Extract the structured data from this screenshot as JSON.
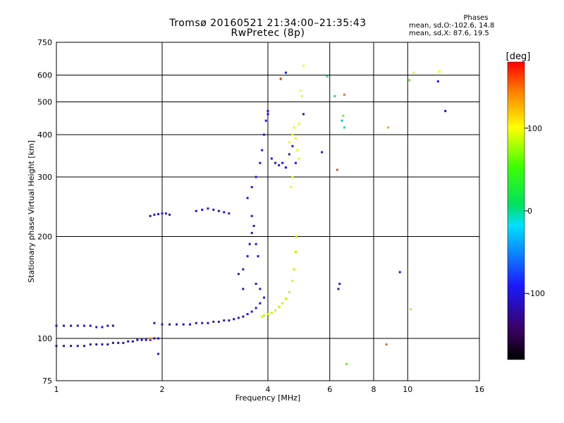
{
  "header": {
    "title_line1": "Tromsø 20160521 21:34:00–21:35:43",
    "title_line2": "RwPretec (8p)",
    "phases_title": "Phases",
    "phases_line1": "mean, sd,O:-102.6, 14.8",
    "phases_line2": "mean, sd,X:  87.6, 19.5"
  },
  "chart_data": {
    "type": "scatter",
    "xlabel": "Frequency [MHz]",
    "ylabel": "Stationary phase Virtual Height [km]",
    "x_scale": "log",
    "y_scale": "log",
    "xlim": [
      1,
      16
    ],
    "ylim": [
      75,
      750
    ],
    "x_ticks": [
      {
        "value": 1,
        "label": "1"
      },
      {
        "value": 2,
        "label": "2"
      },
      {
        "value": 4,
        "label": "4"
      },
      {
        "value": 6,
        "label": "6"
      },
      {
        "value": 8,
        "label": "8"
      },
      {
        "value": 10,
        "label": "10"
      },
      {
        "value": 16,
        "label": "16"
      }
    ],
    "y_ticks": [
      {
        "value": 75,
        "label": "75"
      },
      {
        "value": 100,
        "label": "100"
      },
      {
        "value": 200,
        "label": "200"
      },
      {
        "value": 300,
        "label": "300"
      },
      {
        "value": 400,
        "label": "400"
      },
      {
        "value": 500,
        "label": "500"
      },
      {
        "value": 600,
        "label": "600"
      },
      {
        "value": 750,
        "label": "750"
      }
    ],
    "grid": true,
    "colorbar": {
      "label": "[deg]",
      "range": [
        -180,
        180
      ],
      "ticks": [
        {
          "value": 100,
          "label": "100"
        },
        {
          "value": 0,
          "label": "0"
        },
        {
          "value": -100,
          "label": "-100"
        }
      ]
    },
    "traces": [
      {
        "name": "O lower trace",
        "phase": -105,
        "points": [
          [
            1.0,
            109
          ],
          [
            1.05,
            109
          ],
          [
            1.1,
            109
          ],
          [
            1.15,
            109
          ],
          [
            1.2,
            109
          ],
          [
            1.25,
            109
          ],
          [
            1.3,
            108
          ],
          [
            1.35,
            108
          ],
          [
            1.4,
            109
          ],
          [
            1.45,
            109
          ]
        ]
      },
      {
        "name": "O low trace",
        "phase": -110,
        "points": [
          [
            1.0,
            95
          ],
          [
            1.05,
            95
          ],
          [
            1.1,
            95
          ],
          [
            1.15,
            95
          ],
          [
            1.2,
            95
          ],
          [
            1.25,
            96
          ],
          [
            1.3,
            96
          ],
          [
            1.35,
            96
          ],
          [
            1.4,
            96
          ],
          [
            1.45,
            97
          ],
          [
            1.5,
            97
          ],
          [
            1.55,
            97
          ],
          [
            1.6,
            98
          ],
          [
            1.65,
            98
          ],
          [
            1.7,
            99
          ],
          [
            1.75,
            99
          ],
          [
            1.8,
            99
          ],
          [
            1.85,
            99
          ],
          [
            1.9,
            100
          ],
          [
            1.95,
            100
          ]
        ]
      },
      {
        "name": "O E-F trace",
        "phase": -102,
        "points": [
          [
            1.9,
            111
          ],
          [
            2.0,
            110
          ],
          [
            2.1,
            110
          ],
          [
            2.2,
            110
          ],
          [
            2.3,
            110
          ],
          [
            2.4,
            110
          ],
          [
            2.5,
            111
          ],
          [
            2.6,
            111
          ],
          [
            2.7,
            111
          ],
          [
            2.8,
            112
          ],
          [
            2.9,
            112
          ],
          [
            3.0,
            113
          ],
          [
            3.1,
            113
          ],
          [
            3.2,
            114
          ],
          [
            3.3,
            115
          ],
          [
            3.4,
            116
          ],
          [
            3.5,
            118
          ],
          [
            3.6,
            120
          ],
          [
            3.7,
            123
          ],
          [
            3.8,
            127
          ],
          [
            3.9,
            132
          ]
        ]
      },
      {
        "name": "X F trace",
        "phase": 85,
        "points": [
          [
            3.85,
            116
          ],
          [
            3.9,
            117
          ],
          [
            4.0,
            118
          ],
          [
            4.1,
            119
          ],
          [
            4.2,
            121
          ],
          [
            4.3,
            124
          ],
          [
            4.4,
            127
          ],
          [
            4.5,
            131
          ],
          [
            4.6,
            137
          ],
          [
            4.7,
            148
          ],
          [
            4.75,
            160
          ],
          [
            4.8,
            180
          ],
          [
            4.82,
            200
          ]
        ]
      },
      {
        "name": "O F-region cloud",
        "phase": -100,
        "points": [
          [
            3.4,
            160
          ],
          [
            3.5,
            175
          ],
          [
            3.55,
            190
          ],
          [
            3.6,
            205
          ],
          [
            3.65,
            215
          ],
          [
            3.7,
            190
          ],
          [
            3.75,
            175
          ],
          [
            3.6,
            230
          ],
          [
            3.5,
            260
          ],
          [
            3.6,
            280
          ],
          [
            3.7,
            300
          ],
          [
            3.8,
            330
          ],
          [
            3.85,
            360
          ],
          [
            3.9,
            400
          ],
          [
            3.95,
            440
          ],
          [
            4.0,
            470
          ],
          [
            4.1,
            340
          ],
          [
            4.2,
            330
          ],
          [
            4.3,
            325
          ],
          [
            4.4,
            330
          ],
          [
            4.5,
            320
          ],
          [
            4.6,
            350
          ],
          [
            4.7,
            370
          ],
          [
            4.8,
            330
          ],
          [
            3.7,
            145
          ],
          [
            3.8,
            140
          ],
          [
            3.3,
            155
          ],
          [
            3.4,
            140
          ]
        ]
      },
      {
        "name": "X F2 cloud",
        "phase": 95,
        "points": [
          [
            4.6,
            380
          ],
          [
            4.7,
            400
          ],
          [
            4.75,
            420
          ],
          [
            4.8,
            390
          ],
          [
            4.85,
            360
          ],
          [
            4.7,
            300
          ],
          [
            4.65,
            280
          ],
          [
            4.9,
            430
          ],
          [
            5.0,
            520
          ],
          [
            4.9,
            340
          ]
        ]
      },
      {
        "name": "O 2 MHz cluster",
        "phase": -105,
        "points": [
          [
            1.85,
            230
          ],
          [
            1.9,
            232
          ],
          [
            1.95,
            233
          ],
          [
            2.0,
            234
          ],
          [
            2.05,
            234
          ],
          [
            2.1,
            232
          ],
          [
            2.5,
            238
          ],
          [
            2.6,
            240
          ],
          [
            2.7,
            242
          ],
          [
            2.8,
            240
          ],
          [
            2.9,
            238
          ],
          [
            3.0,
            236
          ],
          [
            3.1,
            234
          ]
        ]
      }
    ],
    "scattered_points": [
      [
        4.35,
        585,
        170
      ],
      [
        4.5,
        610,
        -100
      ],
      [
        5.05,
        640,
        100
      ],
      [
        5.9,
        595,
        -5
      ],
      [
        6.2,
        520,
        -10
      ],
      [
        6.6,
        525,
        150
      ],
      [
        6.55,
        455,
        60
      ],
      [
        6.5,
        440,
        -30
      ],
      [
        6.6,
        420,
        -10
      ],
      [
        5.7,
        355,
        -100
      ],
      [
        6.3,
        315,
        160
      ],
      [
        6.4,
        145,
        -100
      ],
      [
        6.35,
        140,
        -100
      ],
      [
        6.7,
        84,
        60
      ],
      [
        8.7,
        96,
        150
      ],
      [
        8.8,
        420,
        130
      ],
      [
        9.5,
        157,
        -100
      ],
      [
        10.1,
        580,
        60
      ],
      [
        10.2,
        122,
        80
      ],
      [
        10.4,
        610,
        90
      ],
      [
        12.2,
        575,
        -100
      ],
      [
        12.3,
        615,
        100
      ],
      [
        12.8,
        470,
        -120
      ],
      [
        1.85,
        100,
        140
      ],
      [
        1.95,
        90,
        -100
      ],
      [
        4.0,
        460,
        -100
      ],
      [
        4.95,
        540,
        100
      ],
      [
        5.05,
        460,
        -100
      ]
    ]
  }
}
